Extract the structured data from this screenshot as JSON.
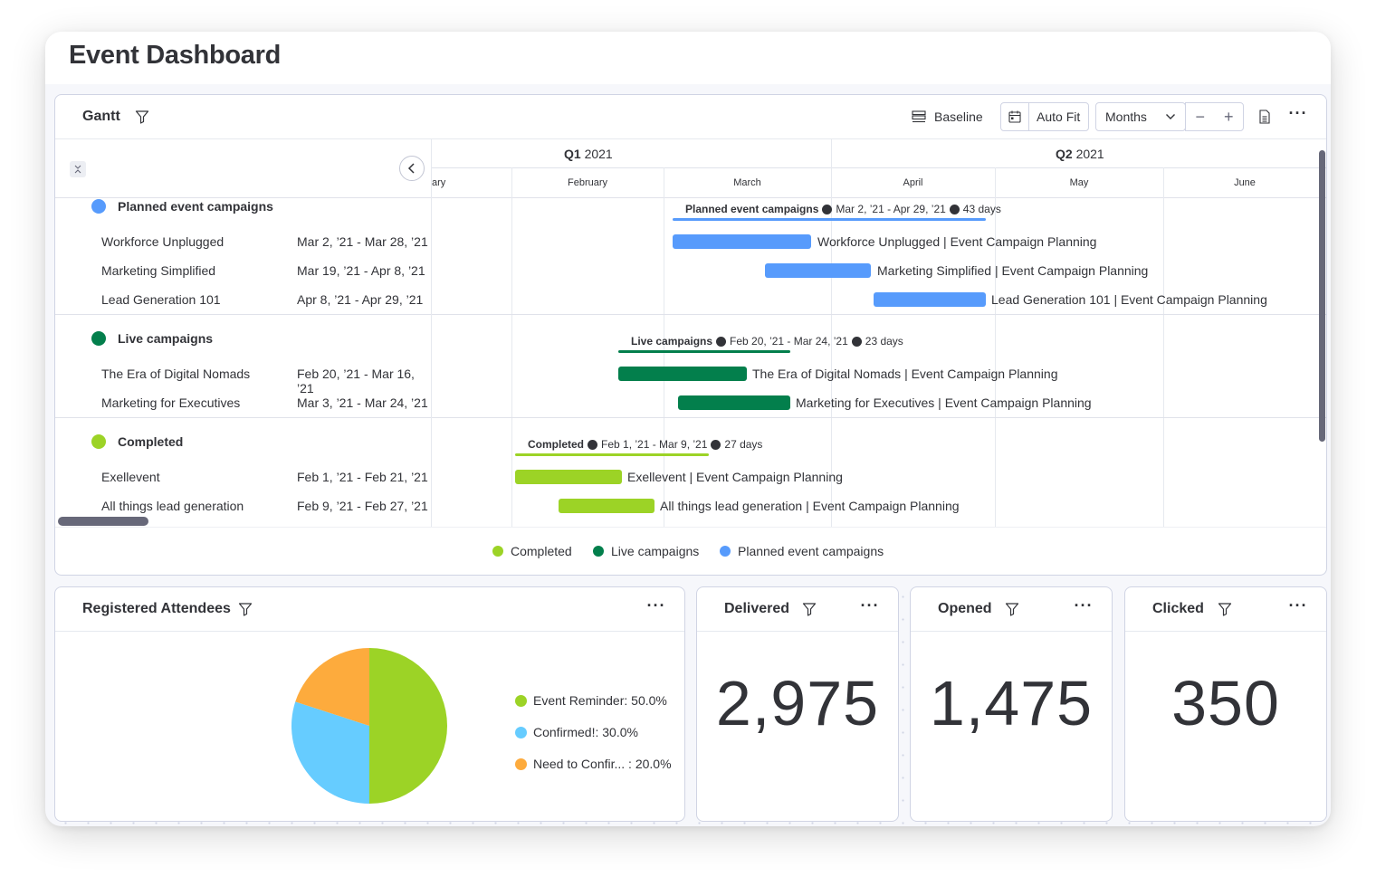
{
  "page": {
    "title": "Event Dashboard"
  },
  "gantt": {
    "title": "Gantt",
    "toolbar": {
      "baseline_label": "Baseline",
      "autofit_label": "Auto Fit",
      "scale_value": "Months",
      "zoom_out": "−",
      "zoom_in": "+",
      "more": "···"
    },
    "timeline": {
      "quarters": [
        {
          "label_bold": "Q1",
          "label_year": "2021"
        },
        {
          "label_bold": "Q2",
          "label_year": "2021"
        }
      ],
      "months": [
        "ary",
        "February",
        "March",
        "April",
        "May",
        "June"
      ]
    },
    "groups": [
      {
        "title": "Planned event campaigns",
        "color": "#579bfc",
        "summary": {
          "name": "Planned event campaigns",
          "range": "Mar 2, ’21 - Apr 29, ’21",
          "duration": "43 days"
        },
        "items": [
          {
            "name": "Workforce Unplugged",
            "dates": "Mar 2, ’21 - Mar 28, ’21",
            "bar_label": "Workforce Unplugged | Event Campaign Planning"
          },
          {
            "name": "Marketing Simplified",
            "dates": "Mar 19, ’21 - Apr 8, ’21",
            "bar_label": "Marketing Simplified | Event Campaign Planning"
          },
          {
            "name": "Lead Generation 101",
            "dates": "Apr 8, ’21 - Apr 29, ’21",
            "bar_label": "Lead Generation 101 | Event Campaign Planning"
          }
        ]
      },
      {
        "title": "Live campaigns",
        "color": "#037f4c",
        "summary": {
          "name": "Live campaigns",
          "range": "Feb 20, ’21 - Mar 24, ’21",
          "duration": "23 days"
        },
        "items": [
          {
            "name": "The Era of Digital Nomads",
            "dates": "Feb 20, ’21 - Mar 16, ’21",
            "bar_label": "The Era of Digital Nomads | Event Campaign Planning"
          },
          {
            "name": "Marketing for Executives",
            "dates": "Mar 3, ’21 - Mar 24, ’21",
            "bar_label": "Marketing for Executives | Event Campaign Planning"
          }
        ]
      },
      {
        "title": "Completed",
        "color": "#9cd326",
        "summary": {
          "name": "Completed",
          "range": "Feb 1, ’21 - Mar 9, ’21",
          "duration": "27 days"
        },
        "items": [
          {
            "name": "Exellevent",
            "dates": "Feb 1, ’21 - Feb 21, ’21",
            "bar_label": "Exellevent | Event Campaign Planning"
          },
          {
            "name": "All things lead generation",
            "dates": "Feb 9, ’21 - Feb 27, ’21",
            "bar_label": "All things lead generation | Event Campaign Planning"
          }
        ]
      }
    ],
    "legend": [
      {
        "label": "Completed",
        "color": "#9cd326"
      },
      {
        "label": "Live campaigns",
        "color": "#037f4c"
      },
      {
        "label": "Planned event campaigns",
        "color": "#579bfc"
      }
    ]
  },
  "attendees": {
    "title": "Registered Attendees",
    "more": "···",
    "legend": [
      {
        "label": "Event Reminder: 50.0%",
        "color": "#9cd326"
      },
      {
        "label": "Confirmed!: 30.0%",
        "color": "#66ccff"
      },
      {
        "label": "Need to Confir... : 20.0%",
        "color": "#fdab3d"
      }
    ]
  },
  "chart_data": {
    "type": "pie",
    "labels": [
      "Event Reminder",
      "Confirmed!",
      "Need to Confir..."
    ],
    "values": [
      50.0,
      30.0,
      20.0
    ],
    "colors": [
      "#9cd326",
      "#66ccff",
      "#fdab3d"
    ],
    "title": ""
  },
  "numbers": [
    {
      "title": "Delivered",
      "value": "2,975",
      "more": "···"
    },
    {
      "title": "Opened",
      "value": "1,475",
      "more": "···"
    },
    {
      "title": "Clicked",
      "value": "350",
      "more": "···"
    }
  ]
}
